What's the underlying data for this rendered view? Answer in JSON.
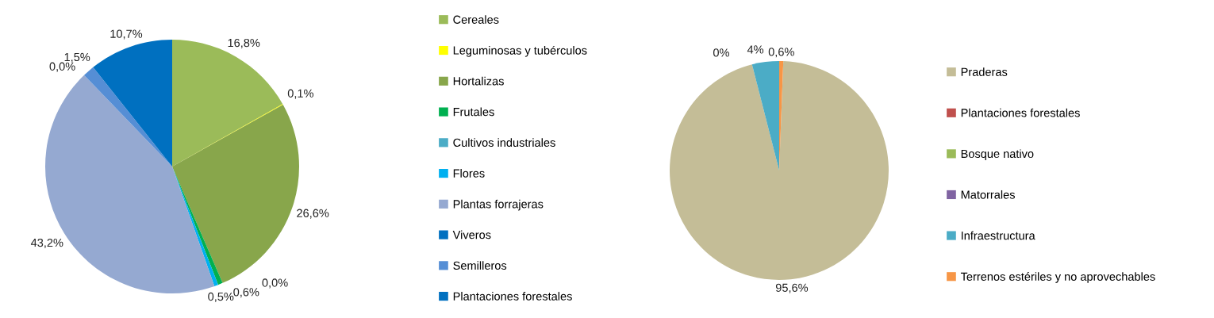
{
  "chart_data": [
    {
      "type": "pie",
      "categories": [
        "Cereales",
        "Leguminosas y tubérculos",
        "Hortalizas",
        "Frutales",
        "Cultivos industriales",
        "Flores",
        "Plantas forrajeras",
        "Viveros",
        "Semilleros",
        "Plantaciones forestales"
      ],
      "values": [
        16.8,
        0.1,
        26.6,
        0.6,
        0.0,
        0.5,
        43.2,
        0.0,
        1.5,
        10.7
      ],
      "colors": [
        "#9bbb59",
        "#ffff00",
        "#88a64b",
        "#00b050",
        "#4bacc6",
        "#00b0f0",
        "#95a9d1",
        "#0070c0",
        "#558ed5",
        "#0070c0"
      ],
      "value_labels": [
        "16,8%",
        "0,1%",
        "26,6%",
        "0,6%",
        "0,0%",
        "0,5%",
        "43,2%",
        "0,0%",
        "1,5%",
        "10,7%"
      ],
      "legend": "right"
    },
    {
      "type": "pie",
      "categories": [
        "Praderas",
        "Plantaciones forestales",
        "Bosque nativo",
        "Matorrales",
        "Infraestructura",
        "Terrenos estériles y no aprovechables"
      ],
      "values": [
        95.6,
        0,
        0,
        0,
        4,
        0.6
      ],
      "colors": [
        "#c4bd97",
        "#c0504d",
        "#9bbb59",
        "#8064a2",
        "#4bacc6",
        "#f79646"
      ],
      "value_labels": [
        "95,6%",
        null,
        null,
        "0%",
        "4%",
        "0,6%"
      ],
      "legend": "right"
    }
  ]
}
